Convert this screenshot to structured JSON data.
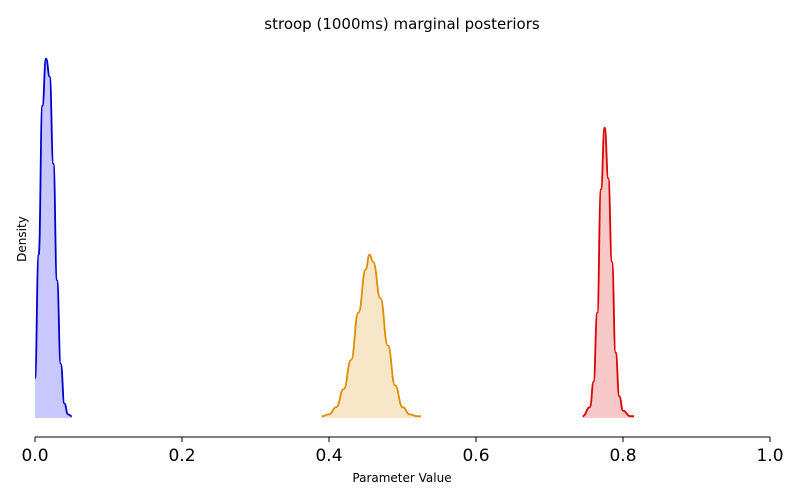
{
  "chart_data": {
    "type": "area",
    "title": "stroop (1000ms) marginal posteriors",
    "xlabel": "Parameter Value",
    "ylabel": "Density",
    "xlim": [
      0.0,
      1.0
    ],
    "ylim": [
      0,
      1.0
    ],
    "x_ticks": [
      "0.0",
      "0.2",
      "0.4",
      "0.6",
      "0.8",
      "1.0"
    ],
    "x_tick_values": [
      0.0,
      0.2,
      0.4,
      0.6,
      0.8,
      1.0
    ],
    "y_ticks_visible": false,
    "grid": false,
    "legend": "none",
    "series": [
      {
        "color": "#0000cc",
        "fill": "#c8c8ff",
        "x": [
          0.0,
          0.005,
          0.01,
          0.015,
          0.02,
          0.025,
          0.03,
          0.035,
          0.04,
          0.045,
          0.05
        ],
        "density": [
          0.11,
          0.45,
          0.86,
          0.99,
          0.94,
          0.7,
          0.38,
          0.15,
          0.04,
          0.01,
          0.005
        ]
      },
      {
        "color": "#e08c00",
        "fill": "#f7e7c8",
        "x": [
          0.39,
          0.4,
          0.41,
          0.42,
          0.43,
          0.44,
          0.45,
          0.455,
          0.46,
          0.47,
          0.48,
          0.49,
          0.5,
          0.51,
          0.52,
          0.525
        ],
        "density": [
          0.005,
          0.01,
          0.03,
          0.08,
          0.16,
          0.29,
          0.41,
          0.45,
          0.43,
          0.33,
          0.2,
          0.09,
          0.03,
          0.01,
          0.005,
          0.005
        ]
      },
      {
        "color": "#dd0000",
        "fill": "#f7c8c8",
        "x": [
          0.745,
          0.755,
          0.76,
          0.765,
          0.77,
          0.775,
          0.78,
          0.785,
          0.79,
          0.795,
          0.8,
          0.81,
          0.815
        ],
        "density": [
          0.005,
          0.03,
          0.1,
          0.29,
          0.63,
          0.8,
          0.66,
          0.43,
          0.18,
          0.06,
          0.02,
          0.005,
          0.005
        ]
      }
    ]
  }
}
